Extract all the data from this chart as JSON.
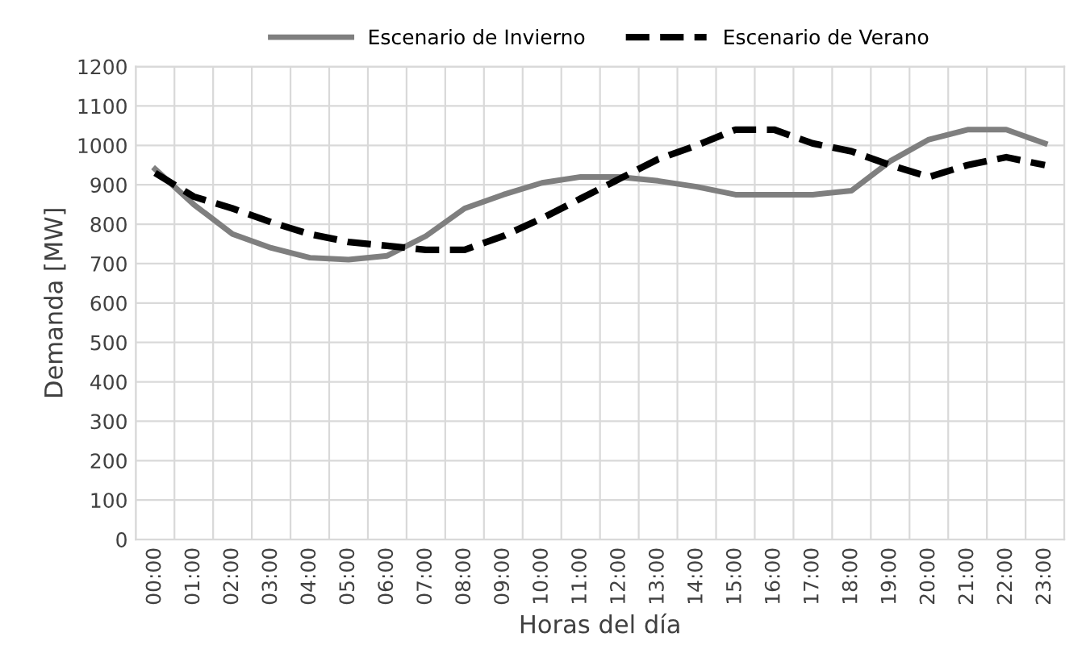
{
  "chart_data": {
    "type": "line",
    "xlabel": "Horas del día",
    "ylabel": "Demanda [MW]",
    "categories": [
      "00:00",
      "01:00",
      "02:00",
      "03:00",
      "04:00",
      "05:00",
      "06:00",
      "07:00",
      "08:00",
      "09:00",
      "10:00",
      "11:00",
      "12:00",
      "13:00",
      "14:00",
      "15:00",
      "16:00",
      "17:00",
      "18:00",
      "19:00",
      "20:00",
      "21:00",
      "22:00",
      "23:00"
    ],
    "series": [
      {
        "name": "Escenario de Invierno",
        "color": "#7f7f7f",
        "line_style": "solid",
        "values": [
          940,
          850,
          775,
          740,
          715,
          710,
          720,
          770,
          840,
          875,
          905,
          920,
          920,
          910,
          895,
          875,
          875,
          875,
          885,
          960,
          1015,
          1040,
          1040,
          1005
        ]
      },
      {
        "name": "Escenario de Verano",
        "color": "#000000",
        "line_style": "dashed",
        "values": [
          930,
          870,
          840,
          805,
          775,
          755,
          745,
          735,
          735,
          770,
          815,
          865,
          915,
          965,
          1000,
          1040,
          1040,
          1005,
          985,
          950,
          920,
          950,
          970,
          950
        ]
      }
    ],
    "ylim": [
      0,
      1200
    ],
    "yticks": [
      0,
      100,
      200,
      300,
      400,
      500,
      600,
      700,
      800,
      900,
      1000,
      1100,
      1200
    ],
    "grid": true,
    "legend": "top",
    "marker": "none"
  }
}
